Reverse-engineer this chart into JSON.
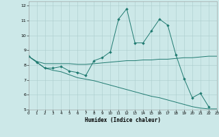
{
  "xlabel": "Humidex (Indice chaleur)",
  "xlim": [
    0,
    23
  ],
  "ylim": [
    5,
    12.3
  ],
  "yticks": [
    5,
    6,
    7,
    8,
    9,
    10,
    11,
    12
  ],
  "xticks": [
    0,
    1,
    2,
    3,
    4,
    5,
    6,
    7,
    8,
    9,
    10,
    11,
    12,
    13,
    14,
    15,
    16,
    17,
    18,
    19,
    20,
    21,
    22,
    23
  ],
  "bg_color": "#cce8e8",
  "grid_color": "#aacccc",
  "line_color": "#1f7a70",
  "line1_y": [
    8.6,
    8.2,
    7.8,
    7.8,
    7.9,
    7.6,
    7.5,
    7.3,
    8.3,
    8.5,
    8.9,
    11.1,
    11.8,
    9.5,
    9.5,
    10.3,
    11.1,
    10.7,
    8.7,
    7.1,
    5.8,
    6.1,
    5.2,
    null
  ],
  "line2_y": [
    8.6,
    8.25,
    8.1,
    8.1,
    8.1,
    8.1,
    8.05,
    8.05,
    8.1,
    8.15,
    8.2,
    8.25,
    8.3,
    8.3,
    8.35,
    8.35,
    8.4,
    8.4,
    8.45,
    8.5,
    8.5,
    8.55,
    8.6,
    8.6
  ],
  "line3_y": [
    8.6,
    8.2,
    7.8,
    7.65,
    7.55,
    7.35,
    7.15,
    7.05,
    6.95,
    6.8,
    6.65,
    6.5,
    6.35,
    6.2,
    6.05,
    5.9,
    5.8,
    5.65,
    5.5,
    5.35,
    5.2,
    5.1,
    5.05,
    5.05
  ]
}
